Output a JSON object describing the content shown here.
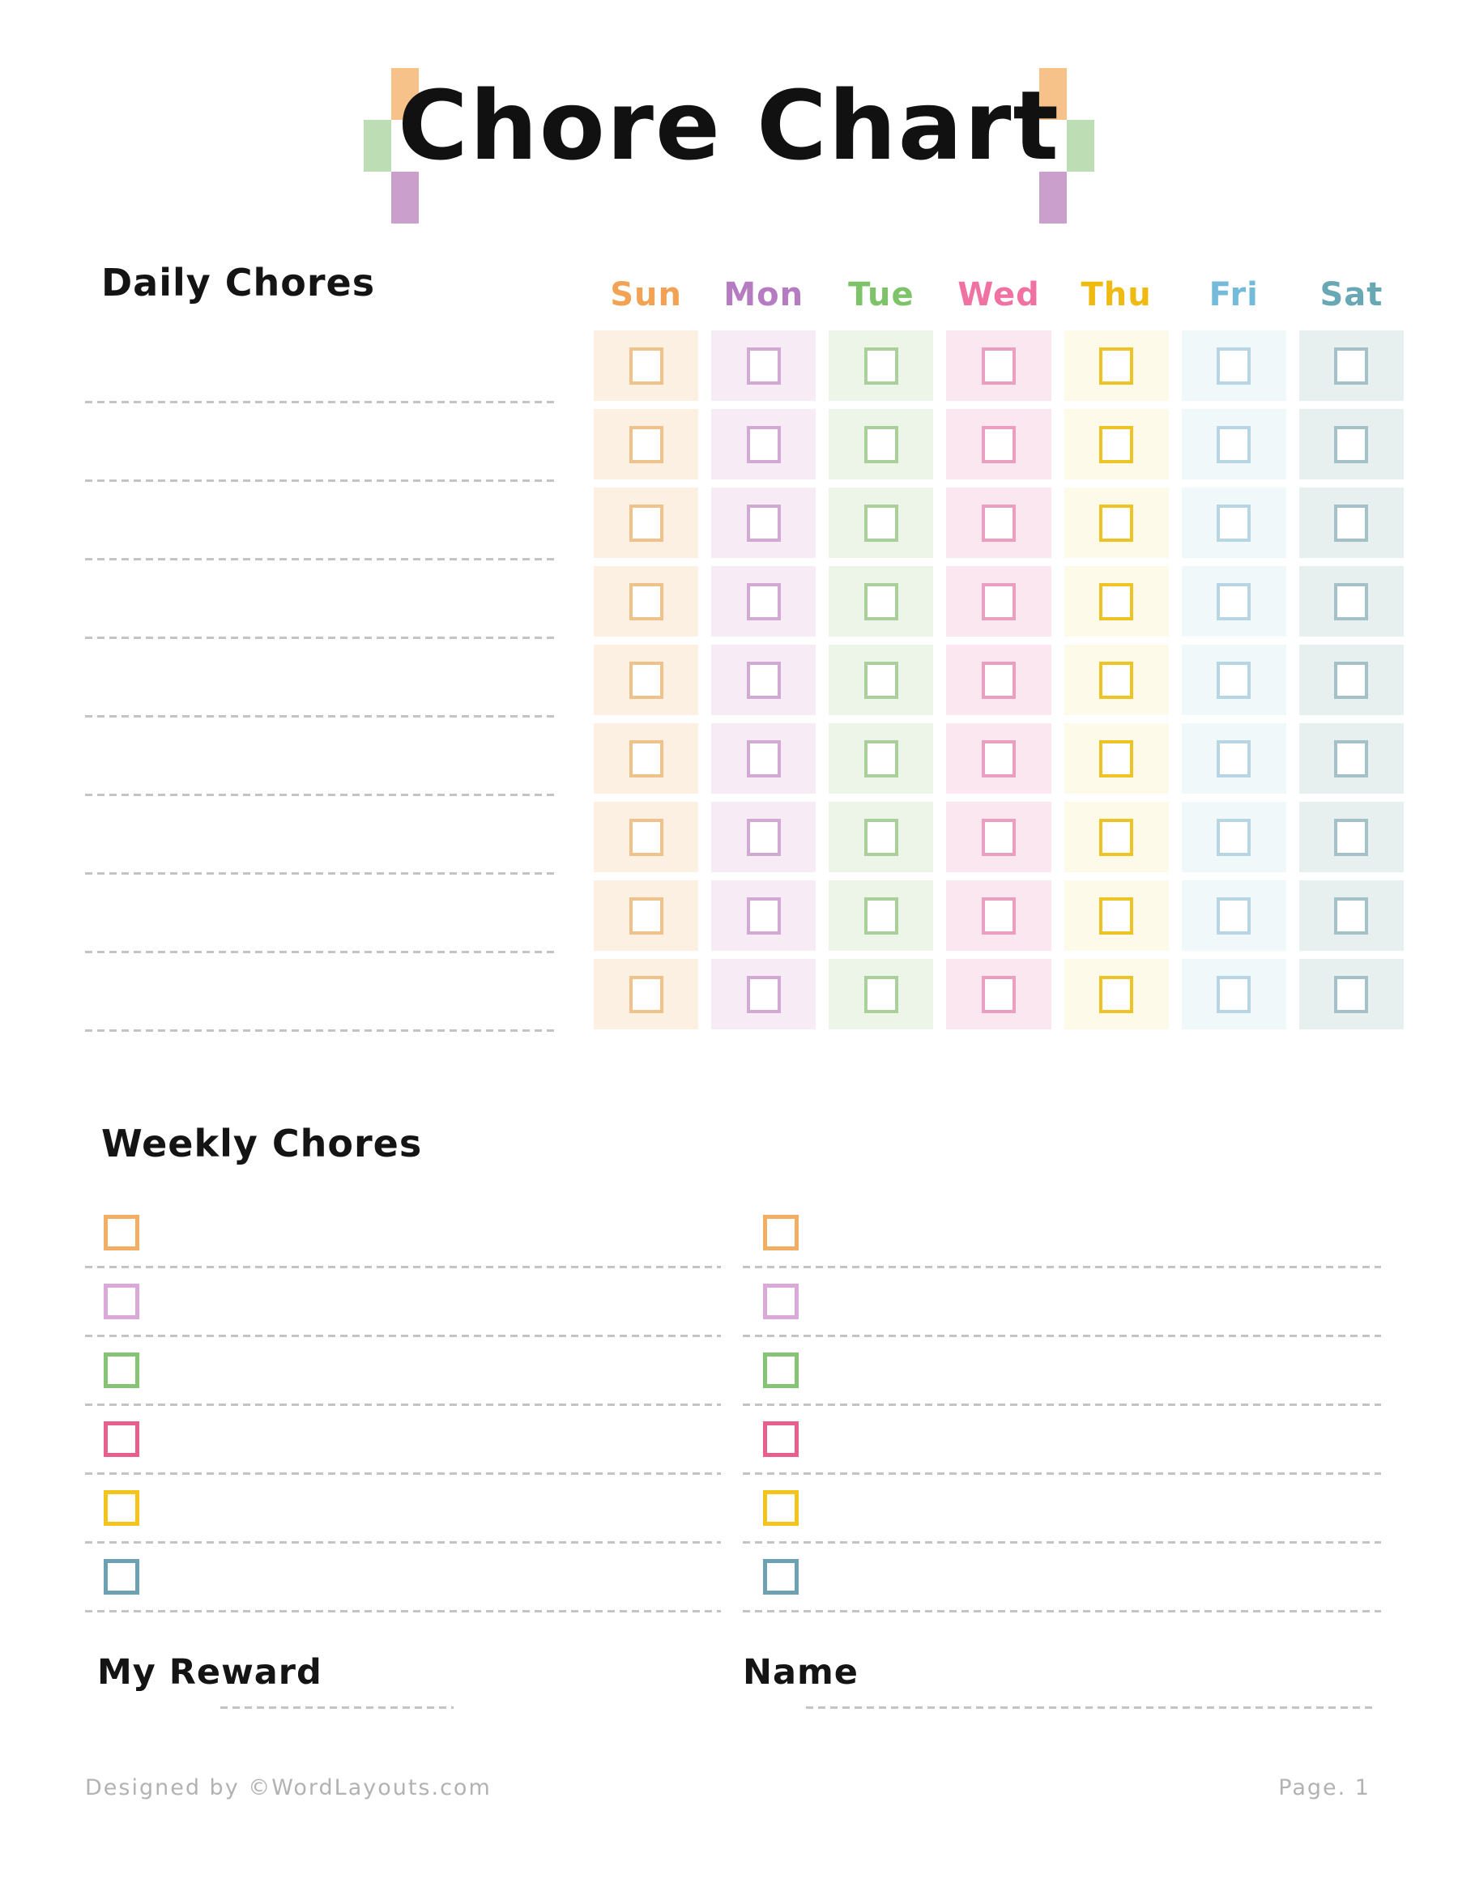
{
  "page": {
    "title": "Chore Chart"
  },
  "decoration": {
    "orange": "#F6C28A",
    "green": "#BDDDB5",
    "purple": "#CA9FCC"
  },
  "daily": {
    "heading": "Daily Chores",
    "rows": 9,
    "days": [
      {
        "label": "Sun",
        "color": "#F2A254",
        "cell_bg": "#FCF0E3",
        "box_border": "#F0C28B"
      },
      {
        "label": "Mon",
        "color": "#B57CC1",
        "cell_bg": "#F7ECF6",
        "box_border": "#D2A9D3"
      },
      {
        "label": "Tue",
        "color": "#7EC367",
        "cell_bg": "#EDF5E9",
        "box_border": "#A9D09B"
      },
      {
        "label": "Wed",
        "color": "#EF72A2",
        "cell_bg": "#FBE7F0",
        "box_border": "#EB9FC0"
      },
      {
        "label": "Thu",
        "color": "#EFBA12",
        "cell_bg": "#FEFAEA",
        "box_border": "#EEC324"
      },
      {
        "label": "Fri",
        "color": "#74BAD9",
        "cell_bg": "#F1F8FA",
        "box_border": "#B8D5E3"
      },
      {
        "label": "Sat",
        "color": "#68A8B4",
        "cell_bg": "#E8EFEF",
        "box_border": "#A5C1C8"
      }
    ]
  },
  "weekly": {
    "heading": "Weekly Chores",
    "columns": 2,
    "rows": 6,
    "checkbox_colors": [
      "#F2AE64",
      "#DAA9D9",
      "#87C374",
      "#E85F8E",
      "#F2C41C",
      "#6CA0B3"
    ]
  },
  "fields": {
    "reward_label": "My Reward",
    "name_label": "Name"
  },
  "footer": {
    "credit": "Designed by ©WordLayouts.com",
    "page": "Page. 1"
  }
}
